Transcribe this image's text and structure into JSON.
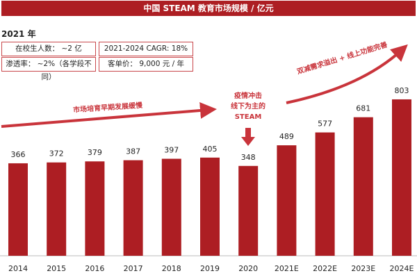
{
  "chart_data": {
    "type": "bar",
    "title": "中国 STEAM 教育市场规模 / 亿元",
    "categories": [
      "2014",
      "2015",
      "2016",
      "2017",
      "2018",
      "2019",
      "2020",
      "2021E",
      "2022E",
      "2023E",
      "2024E"
    ],
    "values": [
      366,
      372,
      379,
      387,
      397,
      405,
      348,
      489,
      577,
      681,
      803
    ],
    "bar_color": "#ad1e23",
    "xlabel": "",
    "ylabel": "",
    "grid": false,
    "annotations": [
      "市场培育早期发展缓慢",
      "疫情冲击\n线下为主的\nSTEAM",
      "双减需求溢出 + 线上功能完善"
    ]
  },
  "info": {
    "year": "2021 年",
    "students": "在校生人数： ~2 亿",
    "cagr": "2021-2024 CAGR: 18%",
    "penetration": "渗透率： ~2%（各学段不同）",
    "price": "客单价： 9,000 元 / 年"
  }
}
